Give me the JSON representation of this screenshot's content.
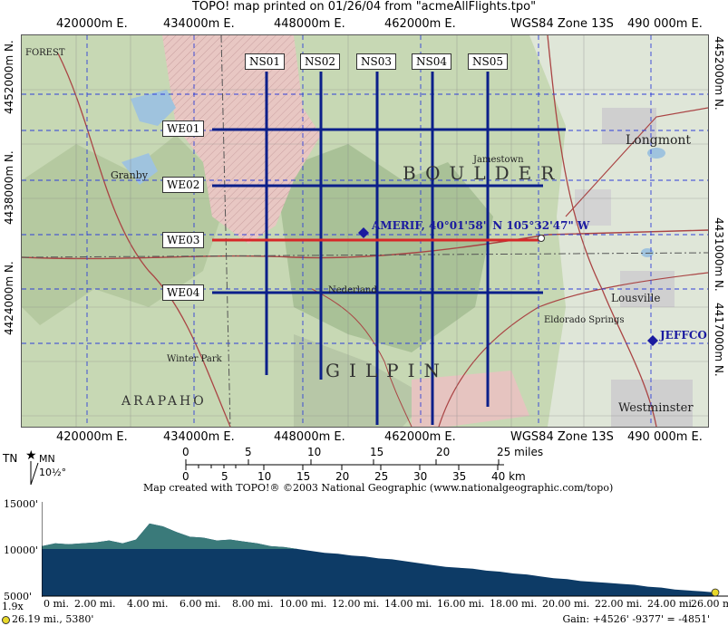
{
  "header": {
    "title": "TOPO! map printed on 01/26/04 from \"acmeAllFlights.tpo\""
  },
  "grid": {
    "eastings_top": [
      "420000m E.",
      "434000m E.",
      "448000m E.",
      "462000m E.",
      "WGS84 Zone 13S",
      "490 000m E."
    ],
    "eastings_bottom": [
      "420000m E.",
      "434000m E.",
      "448000m E.",
      "462000m E.",
      "WGS84 Zone 13S",
      "490 000m E."
    ],
    "northings_left": [
      "4452000m N.",
      "4438000m N.",
      "4424000m N."
    ],
    "northings_right": [
      "4452000m N.",
      "4431000m N.",
      "4417000m N."
    ]
  },
  "flights": {
    "ns": [
      "NS01",
      "NS02",
      "NS03",
      "NS04",
      "NS05"
    ],
    "we": [
      "WE01",
      "WE02",
      "WE03",
      "WE04"
    ]
  },
  "waypoints": {
    "amerif": "AMERIF, 40°01'58\" N 105°32'47\" W",
    "jeffco": "JEFFCO"
  },
  "places": {
    "boulder": "BOULDER",
    "gilpin": "GILPIN",
    "arapaho": "ARAPAHO",
    "longmont": "Longmont",
    "granby": "Granby",
    "lousville": "Lousville",
    "westminster": "Westminster",
    "winter_park": "Winter Park",
    "nederland": "Nederland",
    "jamestown": "Jamestown",
    "eldorado_springs": "Eldorado Springs",
    "forest": "FOREST"
  },
  "north": {
    "tn": "TN",
    "mn": "MN",
    "declination": "10½°"
  },
  "scale": {
    "miles_ticks": [
      "0",
      "5",
      "10",
      "15",
      "20",
      "25 miles"
    ],
    "km_ticks": [
      "0",
      "5",
      "10",
      "15",
      "20",
      "25",
      "30",
      "35",
      "40 km"
    ]
  },
  "credit": "Map created with TOPO!® ©2003 National Geographic (www.nationalgeographic.com/topo)",
  "profile": {
    "y_labels": [
      "15000'",
      "10000'",
      "5000'"
    ],
    "x_labels": [
      "0 mi.",
      "2.00 mi.",
      "4.00 mi.",
      "6.00 mi.",
      "8.00 mi.",
      "10.00 mi.",
      "12.00 mi.",
      "14.00 mi.",
      "16.00 mi.",
      "18.00 mi.",
      "20.00 mi.",
      "22.00 mi.",
      "24.00 mi.",
      "26.00 mi"
    ],
    "vertical_exaggeration": "1.9x",
    "cursor_info": "26.19 mi., 5380'",
    "gain": "Gain: +4526' -9377' = -4851'",
    "x_max_mi": 26.19,
    "y_min_ft": 5000,
    "y_max_ft": 15000,
    "elevation_ft": [
      10300,
      10600,
      10500,
      10600,
      10700,
      10900,
      10600,
      11000,
      12700,
      12400,
      11800,
      11300,
      11200,
      10900,
      11000,
      10800,
      10600,
      10300,
      10200,
      10000,
      9800,
      9600,
      9500,
      9300,
      9200,
      9000,
      8900,
      8700,
      8500,
      8300,
      8100,
      8000,
      7900,
      7700,
      7600,
      7400,
      7300,
      7100,
      6900,
      6800,
      6600,
      6500,
      6400,
      6300,
      6200,
      6000,
      5900,
      5700,
      5600,
      5500,
      5380
    ],
    "colors": {
      "fill": "#0d3b66",
      "highlight": "#3a7a7a",
      "cursor": "#e8d82a"
    }
  },
  "colors": {
    "flight_line": "#0b1f8a",
    "flight_line_selected": "#d62828",
    "grid": "#2f3fd8"
  }
}
